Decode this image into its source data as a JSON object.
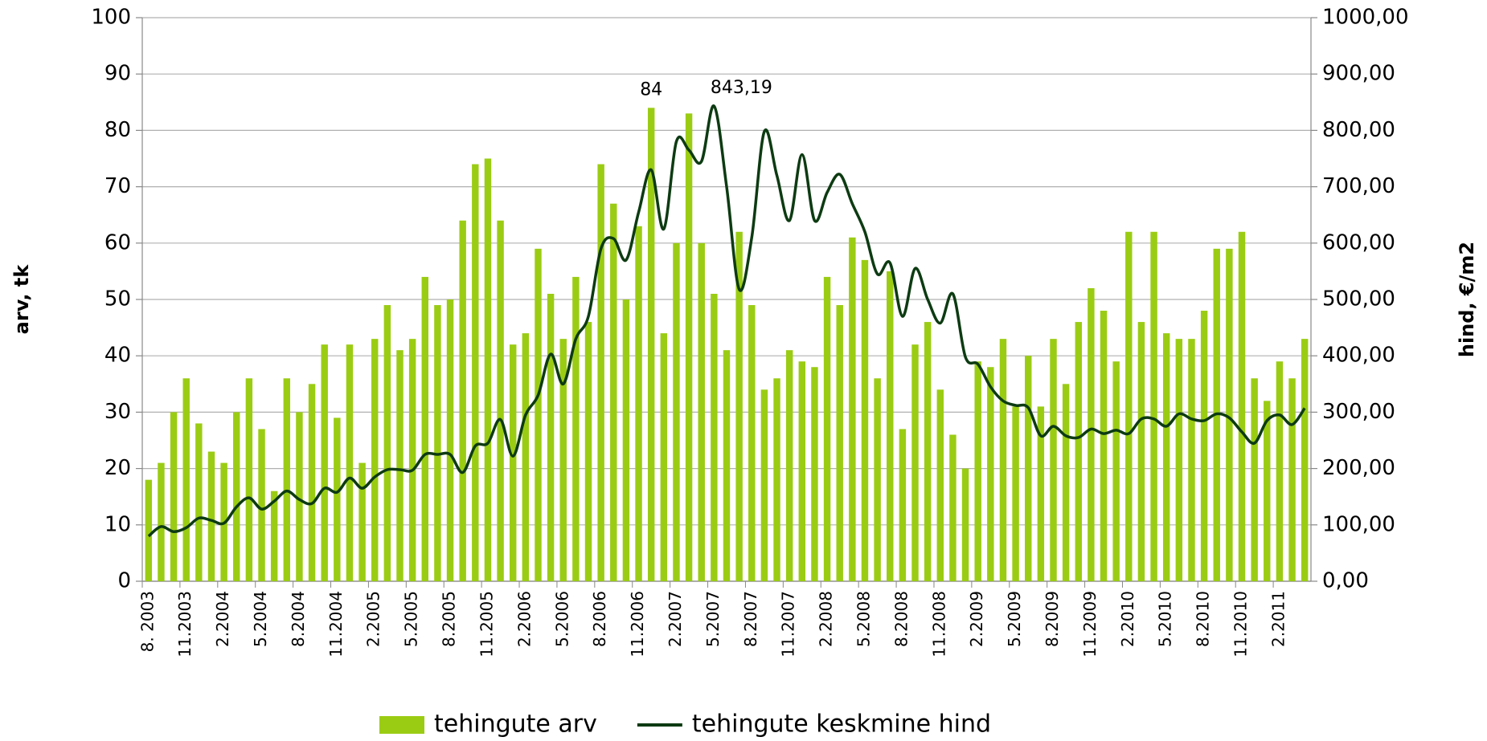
{
  "chart_data": {
    "type": "bar-line",
    "categories": [
      "8. 2003",
      null,
      null,
      "11.2003",
      null,
      null,
      "2.2004",
      null,
      null,
      "5.2004",
      null,
      null,
      "8.2004",
      null,
      null,
      "11.2004",
      null,
      null,
      "2.2005",
      null,
      null,
      "5.2005",
      null,
      null,
      "8.2005",
      null,
      null,
      "11.2005",
      null,
      null,
      "2.2006",
      null,
      null,
      "5.2006",
      null,
      null,
      "8.2006",
      null,
      null,
      "11.2006",
      null,
      null,
      "2.2007",
      null,
      null,
      "5.2007",
      null,
      null,
      "8.2007",
      null,
      null,
      "11.2007",
      null,
      null,
      "2.2008",
      null,
      null,
      "5.2008",
      null,
      null,
      "8.2008",
      null,
      null,
      "11.2008",
      null,
      null,
      "2.2009",
      null,
      null,
      "5.2009",
      null,
      null,
      "8.2009",
      null,
      null,
      "11.2009",
      null,
      null,
      "2.2010",
      null,
      null,
      "5.2010",
      null,
      null,
      "8.2010",
      null,
      null,
      "11.2010",
      null,
      null,
      "2.2011",
      null,
      null
    ],
    "series": [
      {
        "name": "tehingute arv",
        "type": "bar",
        "color": "#9bcc14",
        "axis": "y",
        "values": [
          18,
          21,
          30,
          36,
          28,
          23,
          21,
          30,
          36,
          27,
          16,
          36,
          30,
          35,
          42,
          29,
          42,
          21,
          43,
          49,
          41,
          43,
          54,
          49,
          50,
          64,
          74,
          75,
          64,
          42,
          44,
          59,
          51,
          43,
          54,
          46,
          74,
          67,
          50,
          63,
          84,
          44,
          60,
          83,
          60,
          51,
          41,
          62,
          49,
          34,
          36,
          41,
          39,
          38,
          54,
          49,
          61,
          57,
          36,
          55,
          27,
          42,
          46,
          34,
          26,
          20,
          39,
          38,
          43,
          31,
          40,
          31,
          43,
          35,
          46,
          52,
          48,
          39,
          62,
          46,
          62,
          44,
          43,
          43,
          48,
          59,
          59,
          62,
          36,
          32,
          39,
          36,
          43
        ],
        "value_labels": [
          null,
          null,
          null,
          null,
          null,
          null,
          null,
          null,
          null,
          null,
          null,
          null,
          null,
          null,
          null,
          null,
          null,
          null,
          null,
          null,
          null,
          null,
          null,
          null,
          null,
          null,
          null,
          null,
          null,
          null,
          null,
          null,
          null,
          null,
          null,
          null,
          null,
          null,
          null,
          null,
          "84",
          null,
          null,
          null,
          null,
          null,
          null,
          null,
          null,
          null,
          null,
          null,
          null,
          null,
          null,
          null,
          null,
          null,
          null,
          null,
          null,
          null,
          null,
          null,
          null,
          null,
          null,
          null,
          null,
          null,
          null,
          null,
          null,
          null,
          null,
          null,
          null,
          null,
          null,
          null,
          null,
          null,
          null,
          null,
          null,
          null,
          null,
          null,
          null,
          null,
          null,
          null,
          null
        ]
      },
      {
        "name": "tehingute keskmine hind",
        "type": "line",
        "color": "#0d3b12",
        "axis": "y2",
        "values": [
          80,
          97,
          88,
          95,
          112,
          108,
          103,
          132,
          148,
          128,
          142,
          160,
          145,
          138,
          165,
          158,
          183,
          165,
          185,
          198,
          198,
          197,
          225,
          225,
          225,
          193,
          240,
          245,
          287,
          222,
          295,
          330,
          403,
          350,
          430,
          470,
          590,
          608,
          570,
          655,
          730,
          625,
          780,
          765,
          745,
          843.19,
          700,
          518,
          610,
          798,
          720,
          640,
          757,
          640,
          690,
          722,
          670,
          620,
          545,
          565,
          470,
          555,
          500,
          458,
          510,
          398,
          385,
          345,
          320,
          312,
          308,
          258,
          275,
          258,
          255,
          270,
          262,
          268,
          262,
          288,
          288,
          275,
          297,
          288,
          285,
          297,
          290,
          265,
          245,
          285,
          295,
          278,
          307
        ],
        "value_labels": [
          null,
          null,
          null,
          null,
          null,
          null,
          null,
          null,
          null,
          null,
          null,
          null,
          null,
          null,
          null,
          null,
          null,
          null,
          null,
          null,
          null,
          null,
          null,
          null,
          null,
          null,
          null,
          null,
          null,
          null,
          null,
          null,
          null,
          null,
          null,
          null,
          null,
          null,
          null,
          null,
          null,
          null,
          null,
          null,
          null,
          "843,19",
          null,
          null,
          null,
          null,
          null,
          null,
          null,
          null,
          null,
          null,
          null,
          null,
          null,
          null,
          null,
          null,
          null,
          null,
          null,
          null,
          null,
          null,
          null,
          null,
          null,
          null,
          null,
          null,
          null,
          null,
          null,
          null,
          null,
          null,
          null,
          null,
          null,
          null,
          null,
          null,
          null,
          null,
          null,
          null,
          null,
          null,
          null
        ]
      }
    ],
    "ylabel": "arv, tk",
    "y2label": "hind, €/m2",
    "ylim": [
      0,
      100
    ],
    "yticks": [
      0,
      10,
      20,
      30,
      40,
      50,
      60,
      70,
      80,
      90,
      100
    ],
    "y2lim": [
      0,
      1000
    ],
    "y2ticks": [
      {
        "value": 0,
        "label": "0,00"
      },
      {
        "value": 100,
        "label": "100,00"
      },
      {
        "value": 200,
        "label": "200,00"
      },
      {
        "value": 300,
        "label": "300,00"
      },
      {
        "value": 400,
        "label": "400,00"
      },
      {
        "value": 500,
        "label": "500,00"
      },
      {
        "value": 600,
        "label": "600,00"
      },
      {
        "value": 700,
        "label": "700,00"
      },
      {
        "value": 800,
        "label": "800,00"
      },
      {
        "value": 900,
        "label": "900,00"
      },
      {
        "value": 1000,
        "label": "1000,00"
      }
    ],
    "grid": true,
    "legend": "bottom"
  }
}
